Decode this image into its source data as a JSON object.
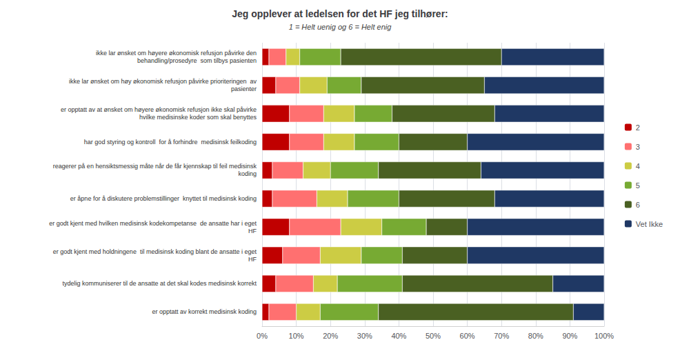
{
  "chart_data": {
    "type": "bar",
    "orientation": "horizontal",
    "stacked": true,
    "title": "Jeg opplever at ledelsen for det HF jeg tilhører:",
    "subtitle": "1 = Helt uenig og 6 = Helt enig",
    "categories": [
      "ikke lar ønsket om høyere økonomisk refusjon påvirke den\nbehandling/prosedyre  som tilbys pasienten",
      "ikke lar ønsket om høy økonomisk refusjon påvirke prioriteringen  av\npasienter",
      "er opptatt av at ønsket om høyere økonomisk refusjon ikke skal påvirke\nhvilke medisinske koder som skal benyttes",
      "har god styring og kontroll  for å forhindre  medisinsk feilkoding",
      "reagerer på en hensiktsmessig måte når de får kjennskap til feil medisinsk\nkoding",
      "er åpne for å diskutere problemstillinger  knyttet til medisinsk koding",
      "er godt kjent med hvilken medisinsk kodekompetanse  de ansatte har i eget\nHF",
      "er godt kjent med holdningene  til medisinsk koding blant de ansatte i eget\nHF",
      "tydelig kommuniserer til de ansatte at det skal kodes medisinsk korrekt",
      "er opptatt av korrekt medisinsk koding"
    ],
    "series": [
      {
        "name": "2",
        "color": "#c00000",
        "values": [
          2,
          4,
          8,
          8,
          3,
          3,
          8,
          6,
          4,
          2
        ]
      },
      {
        "name": "3",
        "color": "#ff7070",
        "values": [
          5,
          7,
          10,
          10,
          9,
          13,
          15,
          11,
          11,
          8
        ]
      },
      {
        "name": "4",
        "color": "#cccc44",
        "values": [
          4,
          8,
          9,
          9,
          8,
          9,
          12,
          12,
          7,
          7
        ]
      },
      {
        "name": "5",
        "color": "#77aa33",
        "values": [
          12,
          10,
          11,
          13,
          14,
          15,
          13,
          12,
          19,
          17
        ]
      },
      {
        "name": "6",
        "color": "#4a6022",
        "values": [
          47,
          36,
          30,
          20,
          30,
          28,
          12,
          19,
          44,
          57
        ]
      },
      {
        "name": "Vet Ikke",
        "color": "#1f3864",
        "values": [
          30,
          35,
          32,
          40,
          36,
          32,
          40,
          40,
          15,
          9
        ]
      }
    ],
    "xlim": [
      0,
      100
    ],
    "xticks": [
      {
        "value": 0,
        "label": "0%"
      },
      {
        "value": 10,
        "label": "10%"
      },
      {
        "value": 20,
        "label": "20%"
      },
      {
        "value": 30,
        "label": "30%"
      },
      {
        "value": 40,
        "label": "40%"
      },
      {
        "value": 50,
        "label": "50%"
      },
      {
        "value": 60,
        "label": "60%"
      },
      {
        "value": 70,
        "label": "70%"
      },
      {
        "value": 80,
        "label": "80%"
      },
      {
        "value": 90,
        "label": "90%"
      },
      {
        "value": 100,
        "label": "100%"
      }
    ],
    "grid": true,
    "legend": "right"
  }
}
